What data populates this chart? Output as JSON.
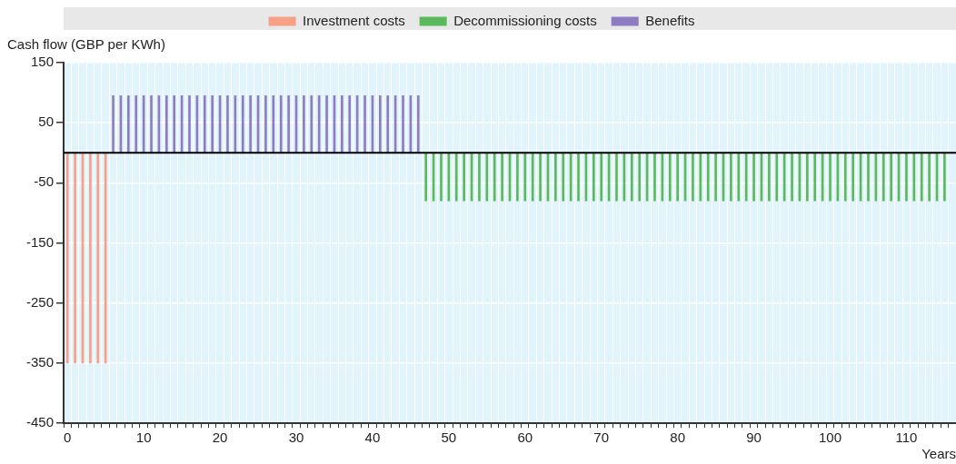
{
  "chart_data": {
    "type": "bar",
    "ylabel": "Cash flow (GBP per KWh)",
    "xlabel": "Years",
    "categories": [
      "0",
      null,
      null,
      null,
      null,
      null,
      null,
      null,
      null,
      null,
      "10",
      null,
      null,
      null,
      null,
      null,
      null,
      null,
      null,
      null,
      "20",
      null,
      null,
      null,
      null,
      null,
      null,
      null,
      null,
      null,
      "30",
      null,
      null,
      null,
      null,
      null,
      null,
      null,
      null,
      null,
      "40",
      null,
      null,
      null,
      null,
      null,
      null,
      null,
      null,
      null,
      "50",
      null,
      null,
      null,
      null,
      null,
      null,
      null,
      null,
      null,
      "60",
      null,
      null,
      null,
      null,
      null,
      null,
      null,
      null,
      null,
      "70",
      null,
      null,
      null,
      null,
      null,
      null,
      null,
      null,
      null,
      "80",
      null,
      null,
      null,
      null,
      null,
      null,
      null,
      null,
      null,
      "90",
      null,
      null,
      null,
      null,
      null,
      null,
      null,
      null,
      null,
      "100",
      null,
      null,
      null,
      null,
      null,
      null,
      null,
      null,
      null,
      "110",
      null,
      null,
      null,
      null,
      null,
      null
    ],
    "series": [
      {
        "name": "Investment costs",
        "color": "#f7a085",
        "values": [
          -350,
          -350,
          -350,
          -350,
          -350,
          -350,
          null,
          null,
          null,
          null,
          null,
          null,
          null,
          null,
          null,
          null,
          null,
          null,
          null,
          null,
          null,
          null,
          null,
          null,
          null,
          null,
          null,
          null,
          null,
          null,
          null,
          null,
          null,
          null,
          null,
          null,
          null,
          null,
          null,
          null,
          null,
          null,
          null,
          null,
          null,
          null,
          null,
          null,
          null,
          null,
          null,
          null,
          null,
          null,
          null,
          null,
          null,
          null,
          null,
          null,
          null,
          null,
          null,
          null,
          null,
          null,
          null,
          null,
          null,
          null,
          null,
          null,
          null,
          null,
          null,
          null,
          null,
          null,
          null,
          null,
          null,
          null,
          null,
          null,
          null,
          null,
          null,
          null,
          null,
          null,
          null,
          null,
          null,
          null,
          null,
          null,
          null,
          null,
          null,
          null,
          null,
          null,
          null,
          null,
          null,
          null,
          null,
          null,
          null,
          null,
          null,
          null,
          null,
          null,
          null,
          null,
          null
        ]
      },
      {
        "name": "Decommissioning costs",
        "color": "#5cb85c",
        "values": [
          null,
          null,
          null,
          null,
          null,
          null,
          null,
          null,
          null,
          null,
          null,
          null,
          null,
          null,
          null,
          null,
          null,
          null,
          null,
          null,
          null,
          null,
          null,
          null,
          null,
          null,
          null,
          null,
          null,
          null,
          null,
          null,
          null,
          null,
          null,
          null,
          null,
          null,
          null,
          null,
          null,
          null,
          null,
          null,
          null,
          null,
          null,
          -80,
          -80,
          -80,
          -80,
          -80,
          -80,
          -80,
          -80,
          -80,
          -80,
          -80,
          -80,
          -80,
          -80,
          -80,
          -80,
          -80,
          -80,
          -80,
          -80,
          -80,
          -80,
          -80,
          -80,
          -80,
          -80,
          -80,
          -80,
          -80,
          -80,
          -80,
          -80,
          -80,
          -80,
          -80,
          -80,
          -80,
          -80,
          -80,
          -80,
          -80,
          -80,
          -80,
          -80,
          -80,
          -80,
          -80,
          -80,
          -80,
          -80,
          -80,
          -80,
          -80,
          -80,
          -80,
          -80,
          -80,
          -80,
          -80,
          -80,
          -80,
          -80,
          -80,
          -80,
          -80,
          -80,
          -80,
          -80,
          -80,
          null
        ]
      },
      {
        "name": "Benefits",
        "color": "#8e7cc3",
        "values": [
          null,
          null,
          null,
          null,
          null,
          null,
          95,
          95,
          95,
          95,
          95,
          95,
          95,
          95,
          95,
          95,
          95,
          95,
          95,
          95,
          95,
          95,
          95,
          95,
          95,
          95,
          95,
          95,
          95,
          95,
          95,
          95,
          95,
          95,
          95,
          95,
          95,
          95,
          95,
          95,
          95,
          95,
          95,
          95,
          95,
          95,
          95,
          null,
          null,
          null,
          null,
          null,
          null,
          null,
          null,
          null,
          null,
          null,
          null,
          null,
          null,
          null,
          null,
          null,
          null,
          null,
          null,
          null,
          null,
          null,
          null,
          null,
          null,
          null,
          null,
          null,
          null,
          null,
          null,
          null,
          null,
          null,
          null,
          null,
          null,
          null,
          null,
          null,
          null,
          null,
          null,
          null,
          null,
          null,
          null,
          null,
          null,
          null,
          null,
          null,
          null,
          null,
          null,
          null,
          null,
          null,
          null,
          null,
          null,
          null,
          null,
          null,
          null,
          null,
          null,
          null,
          null
        ]
      }
    ],
    "stacked": true,
    "ylim": [
      -450,
      150
    ],
    "yticks": [
      -450,
      -350,
      -250,
      -150,
      -50,
      50,
      150
    ],
    "ref_lines": [
      {
        "axis": "y",
        "value": 0,
        "color": "#000000"
      }
    ],
    "grid": true,
    "legend": "top"
  }
}
